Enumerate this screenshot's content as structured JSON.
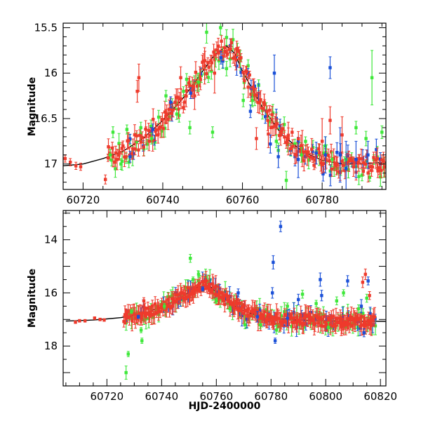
{
  "chart_data": [
    {
      "type": "scatter",
      "panel": "top",
      "title": "",
      "xlabel": "",
      "ylabel": "Magnitude",
      "xlim": [
        60715,
        60796
      ],
      "ylim": [
        17.28,
        15.45
      ],
      "y_inverted": true,
      "x_ticks": [
        60720,
        60740,
        60760,
        60780
      ],
      "y_ticks": [
        15.5,
        16,
        16.5,
        17
      ],
      "series_colors": {
        "red": "#ee3a2c",
        "green": "#3ee83a",
        "blue": "#1a50d8",
        "model": "#000000"
      },
      "series": [
        {
          "color": "red",
          "points": [
            [
              60715.5,
              16.94,
              0.04
            ],
            [
              60716.8,
              16.98,
              0.04
            ],
            [
              60718.2,
              17.02,
              0.04
            ],
            [
              60719.4,
              17.03,
              0.04
            ],
            [
              60725.6,
              17.17,
              0.05
            ],
            [
              60733.6,
              16.2,
              0.12
            ],
            [
              60734.0,
              16.05,
              0.15
            ],
            [
              60741.0,
              16.45,
              0.1
            ],
            [
              60744.5,
              16.05,
              0.12
            ],
            [
              60748.0,
              16.25,
              0.15
            ],
            [
              60750.5,
              15.92,
              0.2
            ],
            [
              60753.0,
              16.0,
              0.22
            ],
            [
              60755.5,
              15.72,
              0.1
            ],
            [
              60763.5,
              16.72,
              0.12
            ],
            [
              60766.5,
              16.67,
              0.15
            ],
            [
              60771.5,
              16.72,
              0.18
            ],
            [
              60775.0,
              16.83,
              0.2
            ],
            [
              60780.0,
              16.75,
              0.25
            ],
            [
              60782.0,
              16.52,
              0.15
            ],
            [
              60785.0,
              16.68,
              0.2
            ]
          ]
        },
        {
          "color": "green",
          "points": [
            [
              60726.8,
              16.9,
              0.06
            ],
            [
              60727.5,
              16.65,
              0.06
            ],
            [
              60729.5,
              17.0,
              0.06
            ],
            [
              60731.0,
              16.62,
              0.05
            ],
            [
              60731.5,
              16.98,
              0.06
            ],
            [
              60734.5,
              16.6,
              0.06
            ],
            [
              60737.2,
              16.72,
              0.06
            ],
            [
              60740.8,
              16.25,
              0.06
            ],
            [
              60743.5,
              16.45,
              0.06
            ],
            [
              60746.8,
              16.6,
              0.07
            ],
            [
              60749.0,
              16.1,
              0.1
            ],
            [
              60751.0,
              15.55,
              0.12
            ],
            [
              60752.5,
              16.65,
              0.06
            ],
            [
              60754.5,
              15.5,
              0.08
            ],
            [
              60756.0,
              15.95,
              0.08
            ],
            [
              60760.2,
              16.3,
              0.07
            ],
            [
              60762.5,
              16.3,
              0.07
            ],
            [
              60768.5,
              16.75,
              0.07
            ],
            [
              60769.0,
              16.85,
              0.08
            ],
            [
              60771.0,
              17.18,
              0.1
            ],
            [
              60774.8,
              16.9,
              0.08
            ],
            [
              60780.8,
              16.8,
              0.1
            ],
            [
              60782.5,
              16.95,
              0.08
            ],
            [
              60786.0,
              16.95,
              0.08
            ],
            [
              60788.5,
              16.6,
              0.07
            ],
            [
              60791.0,
              16.72,
              0.08
            ],
            [
              60792.5,
              16.05,
              0.3
            ],
            [
              60795.0,
              16.65,
              0.07
            ]
          ]
        },
        {
          "color": "blue",
          "points": [
            [
              60731.8,
              16.92,
              0.06
            ],
            [
              60737.5,
              16.62,
              0.06
            ],
            [
              60742.0,
              16.32,
              0.06
            ],
            [
              60747.0,
              16.22,
              0.06
            ],
            [
              60754.6,
              15.83,
              0.07
            ],
            [
              60762.0,
              16.42,
              0.07
            ],
            [
              60767.0,
              16.78,
              0.1
            ],
            [
              60768.0,
              16.0,
              0.2
            ],
            [
              60769.0,
              16.92,
              0.12
            ],
            [
              60774.0,
              16.95,
              0.2
            ],
            [
              60778.5,
              16.88,
              0.12
            ],
            [
              60780.8,
              16.9,
              0.2
            ],
            [
              60782.0,
              15.94,
              0.12
            ],
            [
              60784.5,
              16.9,
              0.3
            ],
            [
              60786.0,
              17.05,
              0.3
            ],
            [
              60788.5,
              16.95,
              0.2
            ],
            [
              60791.5,
              16.9,
              0.15
            ]
          ]
        }
      ],
      "model_line": {
        "x": [
          60715,
          60720,
          60725,
          60730,
          60735,
          60740,
          60745,
          60750,
          60753,
          60756,
          60758,
          60760,
          60765,
          60770,
          60775,
          60780,
          60785,
          60790,
          60796
        ],
        "y": [
          17.02,
          17.0,
          16.94,
          16.86,
          16.72,
          16.52,
          16.28,
          15.98,
          15.8,
          15.7,
          15.78,
          15.98,
          16.38,
          16.68,
          16.86,
          16.96,
          17.0,
          17.0,
          16.98
        ]
      }
    },
    {
      "type": "scatter",
      "panel": "bottom",
      "title": "",
      "xlabel": "HJD-2400000",
      "ylabel": "Magnitude",
      "xlim": [
        60704,
        60822
      ],
      "ylim": [
        19.5,
        12.9
      ],
      "y_inverted": true,
      "x_ticks": [
        60720,
        60740,
        60760,
        60780,
        60800,
        60820
      ],
      "y_ticks": [
        14,
        16,
        18
      ],
      "series_colors": {
        "red": "#ee3a2c",
        "green": "#3ee83a",
        "blue": "#1a50d8",
        "model": "#000000"
      },
      "series": [
        {
          "color": "red",
          "points": [
            [
              60708.5,
              17.1,
              0.05
            ],
            [
              60710.0,
              17.05,
              0.05
            ],
            [
              60712.0,
              17.05,
              0.05
            ],
            [
              60715.5,
              16.95,
              0.05
            ],
            [
              60717.5,
              17.0,
              0.05
            ],
            [
              60719.0,
              17.02,
              0.05
            ],
            [
              60733.5,
              16.3,
              0.12
            ],
            [
              60752.0,
              16.0,
              0.15
            ],
            [
              60755.5,
              15.85,
              0.12
            ],
            [
              60813.5,
              15.6,
              0.2
            ],
            [
              60814.5,
              15.3,
              0.2
            ],
            [
              60816.0,
              16.1,
              0.15
            ]
          ]
        },
        {
          "color": "green",
          "points": [
            [
              60727.0,
              19.0,
              0.25
            ],
            [
              60727.8,
              18.3,
              0.1
            ],
            [
              60729.0,
              16.7,
              0.08
            ],
            [
              60732.5,
              17.4,
              0.1
            ],
            [
              60732.8,
              17.8,
              0.1
            ],
            [
              60741.0,
              16.5,
              0.1
            ],
            [
              60750.5,
              14.7,
              0.15
            ],
            [
              60751.5,
              15.5,
              0.1
            ],
            [
              60753.5,
              15.3,
              0.1
            ],
            [
              60760.0,
              16.3,
              0.1
            ],
            [
              60765.0,
              16.6,
              0.1
            ],
            [
              60770.5,
              17.2,
              0.15
            ],
            [
              60776.0,
              17.2,
              0.15
            ],
            [
              60782.0,
              17.4,
              0.15
            ],
            [
              60786.0,
              16.5,
              0.12
            ],
            [
              60791.5,
              16.05,
              0.15
            ],
            [
              60796.5,
              16.4,
              0.12
            ],
            [
              60801.0,
              17.3,
              0.2
            ],
            [
              60804.0,
              16.3,
              0.15
            ],
            [
              60806.5,
              16.0,
              0.12
            ],
            [
              60812.0,
              16.6,
              0.15
            ],
            [
              60815.0,
              16.2,
              0.15
            ]
          ]
        },
        {
          "color": "blue",
          "points": [
            [
              60731.5,
              16.9,
              0.06
            ],
            [
              60755.0,
              15.85,
              0.08
            ],
            [
              60768.0,
              16.0,
              0.15
            ],
            [
              60775.0,
              16.9,
              0.2
            ],
            [
              60780.5,
              16.0,
              0.2
            ],
            [
              60780.8,
              14.85,
              0.25
            ],
            [
              60781.5,
              17.8,
              0.1
            ],
            [
              60783.5,
              13.5,
              0.2
            ],
            [
              60786.0,
              16.95,
              0.3
            ],
            [
              60790.0,
              16.25,
              0.2
            ],
            [
              60798.0,
              15.5,
              0.25
            ],
            [
              60798.5,
              16.1,
              0.2
            ],
            [
              60808.0,
              15.55,
              0.2
            ],
            [
              60813.0,
              16.5,
              0.25
            ],
            [
              60814.0,
              17.5,
              0.15
            ],
            [
              60815.5,
              15.55,
              0.15
            ]
          ]
        }
      ],
      "model_line": {
        "x": [
          60705,
          60715,
          60720,
          60725,
          60730,
          60735,
          60740,
          60745,
          60750,
          60753,
          60756,
          60758,
          60760,
          60765,
          60770,
          60775,
          60780,
          60790,
          60800,
          60810,
          60822
        ],
        "y": [
          17.06,
          17.02,
          16.98,
          16.93,
          16.85,
          16.72,
          16.52,
          16.28,
          15.98,
          15.8,
          15.7,
          15.78,
          15.98,
          16.38,
          16.68,
          16.86,
          16.96,
          17.02,
          17.05,
          17.06,
          17.07
        ]
      }
    }
  ]
}
